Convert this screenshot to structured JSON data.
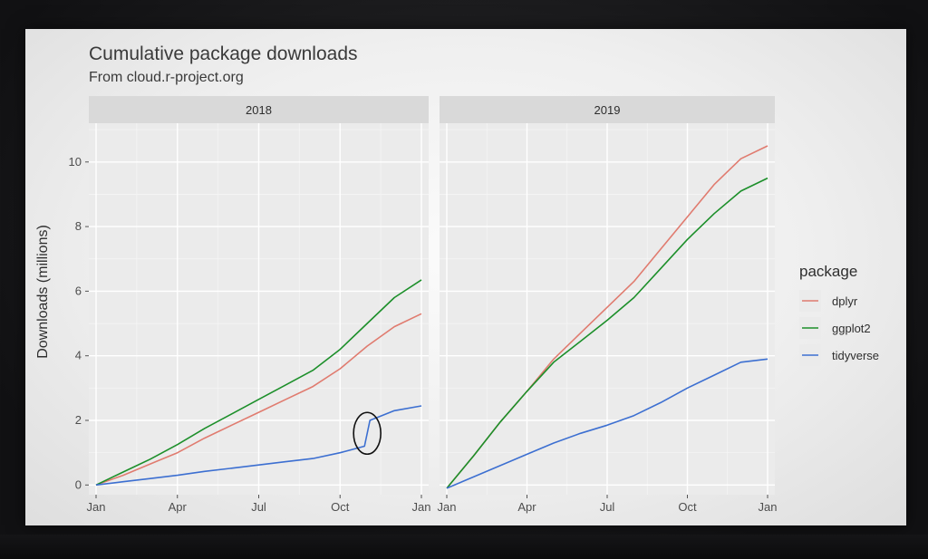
{
  "chart_data": {
    "type": "line",
    "title": "Cumulative package downloads",
    "subtitle": "From cloud.r-project.org",
    "ylabel": "Downloads (millions)",
    "xlabel": "",
    "ylim": [
      -0.3,
      11.2
    ],
    "yticks": [
      0,
      2,
      4,
      6,
      8,
      10
    ],
    "grid": true,
    "legend": {
      "title": "package",
      "position": "right"
    },
    "xtick_labels": [
      "Jan",
      "Apr",
      "Jul",
      "Oct",
      "Jan"
    ],
    "facets": [
      {
        "label": "2018",
        "series": [
          {
            "name": "dplyr",
            "color": "#e07b6f",
            "points": [
              [
                0,
                0
              ],
              [
                1,
                0.3
              ],
              [
                2,
                0.65
              ],
              [
                3,
                1.0
              ],
              [
                4,
                1.45
              ],
              [
                5,
                1.85
              ],
              [
                6,
                2.25
              ],
              [
                7,
                2.65
              ],
              [
                8,
                3.05
              ],
              [
                9,
                3.6
              ],
              [
                10,
                4.3
              ],
              [
                11,
                4.9
              ],
              [
                12,
                5.3
              ]
            ]
          },
          {
            "name": "ggplot2",
            "color": "#1c8f2a",
            "points": [
              [
                0,
                0
              ],
              [
                1,
                0.4
              ],
              [
                2,
                0.8
              ],
              [
                3,
                1.25
              ],
              [
                4,
                1.75
              ],
              [
                5,
                2.2
              ],
              [
                6,
                2.65
              ],
              [
                7,
                3.1
              ],
              [
                8,
                3.55
              ],
              [
                9,
                4.2
              ],
              [
                10,
                5.0
              ],
              [
                11,
                5.8
              ],
              [
                12,
                6.35
              ]
            ]
          },
          {
            "name": "tidyverse",
            "color": "#3c6fd1",
            "points": [
              [
                0,
                0
              ],
              [
                1,
                0.1
              ],
              [
                2,
                0.2
              ],
              [
                3,
                0.3
              ],
              [
                4,
                0.42
              ],
              [
                5,
                0.52
              ],
              [
                6,
                0.62
              ],
              [
                7,
                0.72
              ],
              [
                8,
                0.82
              ],
              [
                9,
                1.0
              ],
              [
                9.9,
                1.2
              ],
              [
                10.1,
                2.0
              ],
              [
                11,
                2.3
              ],
              [
                12,
                2.45
              ]
            ]
          }
        ]
      },
      {
        "label": "2019",
        "series": [
          {
            "name": "dplyr",
            "color": "#e07b6f",
            "points": [
              [
                0,
                -0.1
              ],
              [
                1,
                0.9
              ],
              [
                2,
                1.95
              ],
              [
                3,
                2.9
              ],
              [
                4,
                3.9
              ],
              [
                5,
                4.7
              ],
              [
                6,
                5.5
              ],
              [
                7,
                6.3
              ],
              [
                8,
                7.3
              ],
              [
                9,
                8.3
              ],
              [
                10,
                9.3
              ],
              [
                11,
                10.1
              ],
              [
                12,
                10.5
              ]
            ]
          },
          {
            "name": "ggplot2",
            "color": "#1c8f2a",
            "points": [
              [
                0,
                -0.1
              ],
              [
                1,
                0.9
              ],
              [
                2,
                1.95
              ],
              [
                3,
                2.9
              ],
              [
                4,
                3.8
              ],
              [
                5,
                4.45
              ],
              [
                6,
                5.1
              ],
              [
                7,
                5.8
              ],
              [
                8,
                6.7
              ],
              [
                9,
                7.6
              ],
              [
                10,
                8.4
              ],
              [
                11,
                9.1
              ],
              [
                12,
                9.5
              ]
            ]
          },
          {
            "name": "tidyverse",
            "color": "#3c6fd1",
            "points": [
              [
                0,
                -0.1
              ],
              [
                1,
                0.25
              ],
              [
                2,
                0.6
              ],
              [
                3,
                0.95
              ],
              [
                4,
                1.3
              ],
              [
                5,
                1.6
              ],
              [
                6,
                1.85
              ],
              [
                7,
                2.15
              ],
              [
                8,
                2.55
              ],
              [
                9,
                3.0
              ],
              [
                10,
                3.4
              ],
              [
                11,
                3.8
              ],
              [
                12,
                3.9
              ]
            ]
          }
        ]
      }
    ]
  }
}
